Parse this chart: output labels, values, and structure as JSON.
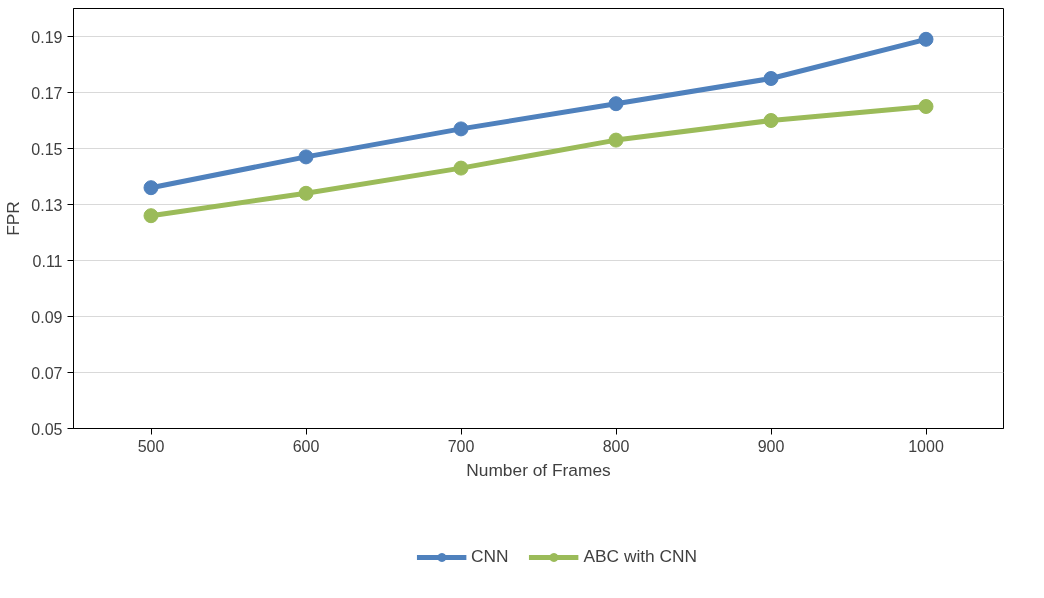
{
  "chart_data": {
    "type": "line",
    "xlabel": "Number of Frames",
    "ylabel": "FPR",
    "categories": [
      "500",
      "600",
      "700",
      "800",
      "900",
      "1000"
    ],
    "series": [
      {
        "name": "CNN",
        "color": "#4f81bd",
        "values": [
          0.136,
          0.147,
          0.157,
          0.166,
          0.175,
          0.189
        ]
      },
      {
        "name": "ABC with CNN",
        "color": "#9bbb59",
        "values": [
          0.126,
          0.134,
          0.143,
          0.153,
          0.16,
          0.165
        ]
      }
    ],
    "ylim": [
      0.05,
      0.2
    ],
    "yticks": [
      0.05,
      0.07,
      0.09,
      0.11,
      0.13,
      0.15,
      0.17,
      0.19
    ],
    "grid": "y",
    "legend": "bottom",
    "marker": "circle",
    "line_style": "solid"
  }
}
